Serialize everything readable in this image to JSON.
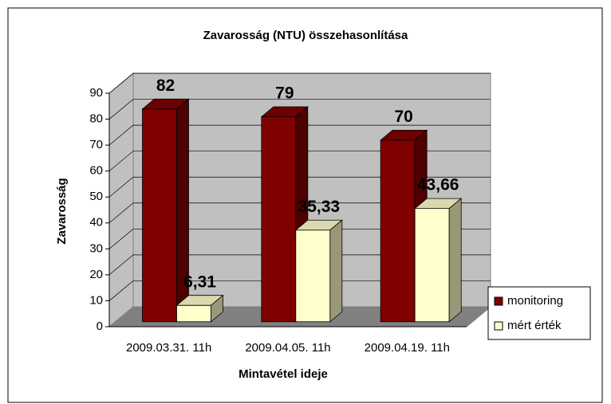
{
  "chart_data": {
    "type": "bar3d",
    "title": "Zavarosság (NTU) összehasonlítása",
    "x_label": "Mintavétel ideje",
    "y_label": "Zavarosság",
    "categories": [
      "2009.03.31. 11h",
      "2009.04.05. 11h",
      "2009.04.19. 11h"
    ],
    "series": [
      {
        "name": "monitoring",
        "color": "#800000",
        "values": [
          82,
          79,
          70
        ]
      },
      {
        "name": "mért érték",
        "color": "#ffffcc",
        "values": [
          6.31,
          35.33,
          43.66
        ],
        "value_labels": [
          "6,31",
          "35,33",
          "43,66"
        ]
      }
    ],
    "ylim": [
      0,
      90
    ],
    "yticks": [
      0,
      10,
      20,
      30,
      40,
      50,
      60,
      70,
      80,
      90
    ],
    "grid": true,
    "legend": "right"
  }
}
